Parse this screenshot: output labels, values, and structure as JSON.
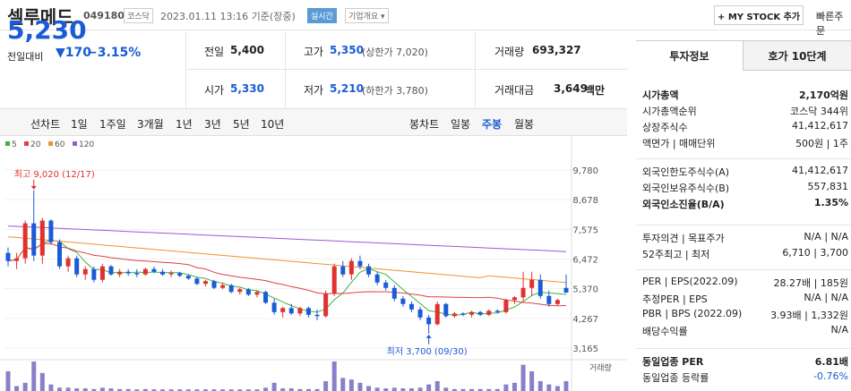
{
  "header": {
    "company": "셀루메드",
    "code": "049180",
    "market": "코스닥",
    "datetime": "2023.01.11 13:16  기준(장중)",
    "realtime": "실시간",
    "corp_info": "기업개요 ▾",
    "mystock": "+ MY STOCK 추가",
    "quick": "빠른주문"
  },
  "price": {
    "current": "5,230",
    "prev_label": "전일대비",
    "change": "▼170",
    "change_pct": "−3.15%"
  },
  "quote": {
    "prev_close_label": "전일",
    "prev_close": "5,400",
    "high_label": "고가",
    "high": "5,350",
    "upper_limit": "(상한가 7,020)",
    "volume_label": "거래량",
    "volume": "693,327",
    "open_label": "시가",
    "open": "5,330",
    "low_label": "저가",
    "low": "5,210",
    "lower_limit": "(하한가 3,780)",
    "amount_label": "거래대금",
    "amount": "3,649",
    "amount_unit": "백만"
  },
  "tabs": {
    "line_chart": "선차트",
    "periods": [
      "1일",
      "1주일",
      "3개월",
      "1년",
      "3년",
      "5년",
      "10년"
    ],
    "candle_chart": "봉차트",
    "candle_periods": [
      "일봉",
      "주봉",
      "월봉"
    ],
    "candle_selected": "주봉"
  },
  "chart_data": {
    "type": "candlestick",
    "legend": [
      "5",
      "20",
      "60",
      "120"
    ],
    "legend_colors": [
      "#3cb043",
      "#e04040",
      "#f09030",
      "#9b59d0"
    ],
    "y_ticks": [
      "9,780",
      "8,678",
      "7,575",
      "6,472",
      "5,370",
      "4,267",
      "3,165"
    ],
    "ylim": [
      3165,
      9780
    ],
    "max_label": "최고 9,020 (12/17)",
    "min_label": "최저 3,700 (09/30)",
    "volume_label": "거래량",
    "ohlc": [
      [
        6700,
        6900,
        6200,
        6400
      ],
      [
        6400,
        6700,
        6100,
        6500
      ],
      [
        6500,
        7900,
        6300,
        7800
      ],
      [
        7800,
        9020,
        6400,
        6600
      ],
      [
        6600,
        8000,
        6300,
        7900
      ],
      [
        7900,
        7950,
        7000,
        7100
      ],
      [
        7100,
        7200,
        6100,
        6200
      ],
      [
        6200,
        6600,
        6000,
        6500
      ],
      [
        6500,
        6600,
        5800,
        5900
      ],
      [
        5900,
        6200,
        5700,
        6100
      ],
      [
        6100,
        6200,
        5600,
        5700
      ],
      [
        5700,
        6300,
        5600,
        6200
      ],
      [
        6200,
        6250,
        5850,
        5900
      ],
      [
        5900,
        6100,
        5800,
        6000
      ],
      [
        6000,
        6100,
        5850,
        5950
      ],
      [
        5950,
        6100,
        5800,
        5900
      ],
      [
        5900,
        6150,
        5850,
        6100
      ],
      [
        6100,
        6200,
        5950,
        6000
      ],
      [
        6000,
        6100,
        5850,
        5900
      ],
      [
        5900,
        6050,
        5800,
        5950
      ],
      [
        5950,
        6000,
        5800,
        5850
      ],
      [
        5850,
        5900,
        5700,
        5750
      ],
      [
        5750,
        5800,
        5500,
        5550
      ],
      [
        5550,
        5700,
        5450,
        5650
      ],
      [
        5650,
        5700,
        5350,
        5400
      ],
      [
        5400,
        5600,
        5350,
        5500
      ],
      [
        5500,
        5550,
        5200,
        5250
      ],
      [
        5250,
        5400,
        5150,
        5350
      ],
      [
        5350,
        5400,
        5100,
        5150
      ],
      [
        5150,
        5300,
        5050,
        5250
      ],
      [
        5250,
        5300,
        4800,
        4850
      ],
      [
        4850,
        5000,
        4400,
        4500
      ],
      [
        4500,
        4700,
        4300,
        4650
      ],
      [
        4650,
        4800,
        4400,
        4450
      ],
      [
        4450,
        4700,
        4350,
        4650
      ],
      [
        4650,
        4700,
        4300,
        4400
      ],
      [
        4400,
        4600,
        4200,
        4350
      ],
      [
        4350,
        5300,
        4300,
        5200
      ],
      [
        5200,
        6300,
        5100,
        6200
      ],
      [
        6200,
        6400,
        5800,
        5900
      ],
      [
        5900,
        6500,
        5700,
        6400
      ],
      [
        6400,
        6600,
        6100,
        6200
      ],
      [
        6200,
        6300,
        5800,
        5900
      ],
      [
        5900,
        6000,
        5500,
        5600
      ],
      [
        5600,
        5700,
        5300,
        5400
      ],
      [
        5400,
        5500,
        4900,
        5000
      ],
      [
        5000,
        5100,
        4700,
        4800
      ],
      [
        4800,
        4900,
        4500,
        4600
      ],
      [
        4600,
        4700,
        4200,
        4300
      ],
      [
        4300,
        4400,
        3700,
        4050
      ],
      [
        4050,
        4900,
        4000,
        4800
      ],
      [
        4800,
        4850,
        4300,
        4350
      ],
      [
        4350,
        4500,
        4300,
        4450
      ],
      [
        4450,
        4500,
        4350,
        4400
      ],
      [
        4400,
        4550,
        4300,
        4500
      ],
      [
        4500,
        4550,
        4350,
        4400
      ],
      [
        4400,
        4600,
        4350,
        4550
      ],
      [
        4550,
        4600,
        4450,
        4500
      ],
      [
        4500,
        5000,
        4450,
        4950
      ],
      [
        4950,
        5100,
        4800,
        5050
      ],
      [
        5050,
        6000,
        4900,
        5400
      ],
      [
        5400,
        6000,
        5100,
        5700
      ],
      [
        5700,
        5900,
        5000,
        5100
      ],
      [
        5100,
        5300,
        4700,
        4800
      ],
      [
        4800,
        5000,
        4750,
        4950
      ],
      [
        5400,
        5900,
        5200,
        5230
      ]
    ],
    "volume": [
      60,
      15,
      25,
      90,
      55,
      20,
      10,
      10,
      8,
      8,
      6,
      10,
      8,
      6,
      6,
      5,
      6,
      5,
      5,
      5,
      5,
      5,
      5,
      5,
      5,
      5,
      5,
      5,
      5,
      5,
      10,
      25,
      8,
      8,
      6,
      6,
      6,
      30,
      90,
      40,
      35,
      25,
      15,
      10,
      8,
      10,
      8,
      8,
      10,
      20,
      30,
      10,
      6,
      6,
      6,
      6,
      6,
      6,
      20,
      25,
      80,
      60,
      30,
      20,
      15,
      30
    ]
  },
  "right_panel": {
    "tab_invest": "투자정보",
    "tab_hoga": "호가 10단계",
    "rows1": [
      {
        "label": "시가총액",
        "value": "2,170억원",
        "bold": true
      },
      {
        "label": "시가총액순위",
        "value": "코스닥 344위"
      },
      {
        "label": "상장주식수",
        "value": "41,412,617"
      },
      {
        "label": "액면가 | 매매단위",
        "value": "500원 | 1주"
      }
    ],
    "rows2": [
      {
        "label": "외국인한도주식수(A)",
        "value": "41,412,617"
      },
      {
        "label": "외국인보유주식수(B)",
        "value": "557,831"
      },
      {
        "label": "외국인소진율(B/A)",
        "value": "1.35%",
        "bold": true
      }
    ],
    "rows3": [
      {
        "label": "투자의견 | 목표주가",
        "value": "N/A | N/A"
      },
      {
        "label": "52주최고 | 최저",
        "value": "6,710 | 3,700"
      }
    ],
    "rows4": [
      {
        "label": "PER | EPS(2022.09)",
        "value": "28.27배 | 185원"
      },
      {
        "label": "추정PER | EPS",
        "value": "N/A | N/A"
      },
      {
        "label": "PBR | BPS (2022.09)",
        "value": "3.93배 | 1,332원"
      },
      {
        "label": "배당수익률",
        "value": "N/A"
      }
    ],
    "rows5": [
      {
        "label": "동일업종 PER",
        "value": "6.81배",
        "bold": true
      },
      {
        "label": "동일업종 등락률",
        "value": "-0.76%",
        "blue": true
      }
    ]
  }
}
